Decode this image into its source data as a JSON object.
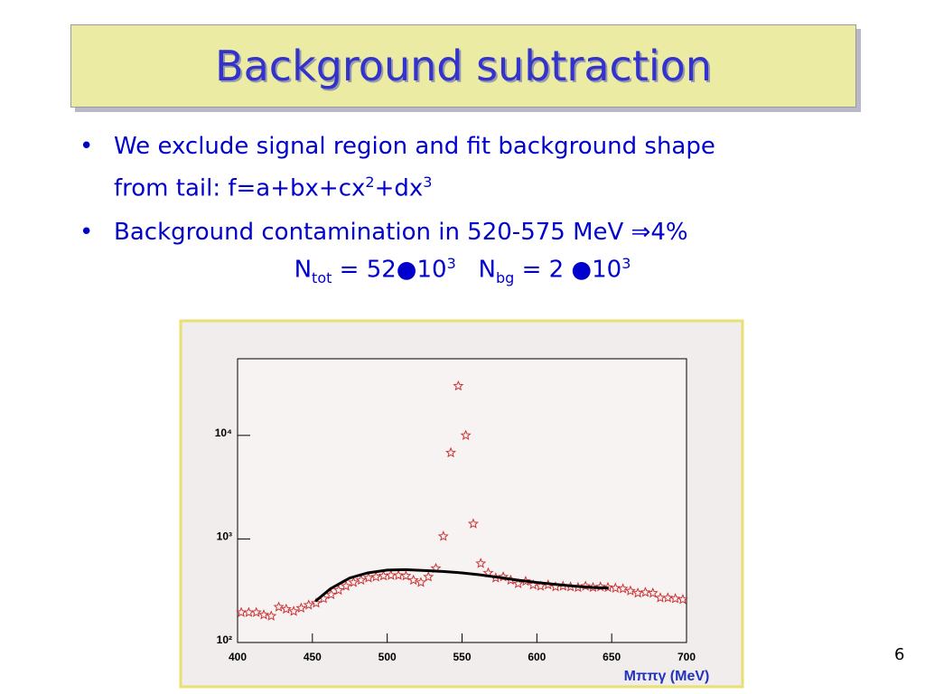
{
  "slide": {
    "title": "Background subtraction",
    "bullet1": [
      "We exclude signal region and fit background shape",
      "from tail: f=a+bx+cx",
      "2",
      "+dx",
      "3"
    ],
    "bullet2": "Background contamination in 520-575 MeV ⇒4%",
    "equation": [
      "N",
      "tot",
      " = 52●10",
      "3",
      "N",
      "bg",
      " = 2 ●10",
      "3"
    ],
    "page_number": "6"
  },
  "chart_data": {
    "type": "scatter",
    "log_y": true,
    "x_label": "Mππγ (MeV)",
    "xlim": [
      400,
      700
    ],
    "xticks": [
      400,
      450,
      500,
      550,
      600,
      650,
      700
    ],
    "ylim": [
      100,
      55000
    ],
    "yticks": [
      {
        "value": 100,
        "label": "10²"
      },
      {
        "value": 1000,
        "label": "10³"
      },
      {
        "value": 10000,
        "label": "10⁴"
      }
    ],
    "series": [
      {
        "color": "#cc3333",
        "marker": "star",
        "x": [
          402.5,
          407.5,
          412.5,
          417.5,
          422.5,
          427.5,
          432.5,
          437.5,
          442.5,
          447.5,
          452.5,
          457.5,
          462.5,
          467.5,
          472.5,
          477.5,
          482.5,
          487.5,
          492.5,
          497.5,
          502.5,
          507.5,
          512.5,
          517.5,
          522.5,
          527.5,
          532.5,
          537.5,
          542.5,
          547.5,
          552.5,
          557.5,
          562.5,
          567.5,
          572.5,
          577.5,
          582.5,
          587.5,
          592.5,
          597.5,
          602.5,
          607.5,
          612.5,
          617.5,
          622.5,
          627.5,
          632.5,
          637.5,
          642.5,
          647.5,
          652.5,
          657.5,
          662.5,
          667.5,
          672.5,
          677.5,
          682.5,
          687.5,
          692.5,
          697.5
        ],
        "values": [
          195,
          195,
          195,
          185,
          180,
          220,
          210,
          200,
          215,
          230,
          240,
          265,
          290,
          320,
          350,
          380,
          400,
          420,
          430,
          440,
          445,
          445,
          440,
          400,
          380,
          430,
          520,
          1060,
          6800,
          30000,
          10000,
          1400,
          580,
          470,
          420,
          430,
          400,
          370,
          390,
          360,
          350,
          360,
          345,
          350,
          345,
          340,
          350,
          340,
          345,
          340,
          335,
          330,
          315,
          300,
          305,
          300,
          270,
          270,
          265,
          260
        ]
      },
      {
        "color": "#000000",
        "marker": "line",
        "x": [
          452,
          462,
          475,
          487,
          500,
          512,
          525,
          537,
          550,
          562,
          575,
          587,
          600,
          612,
          625,
          637,
          648
        ],
        "values": [
          250,
          330,
          420,
          470,
          500,
          505,
          495,
          485,
          470,
          450,
          425,
          400,
          380,
          365,
          350,
          340,
          336
        ]
      }
    ]
  }
}
